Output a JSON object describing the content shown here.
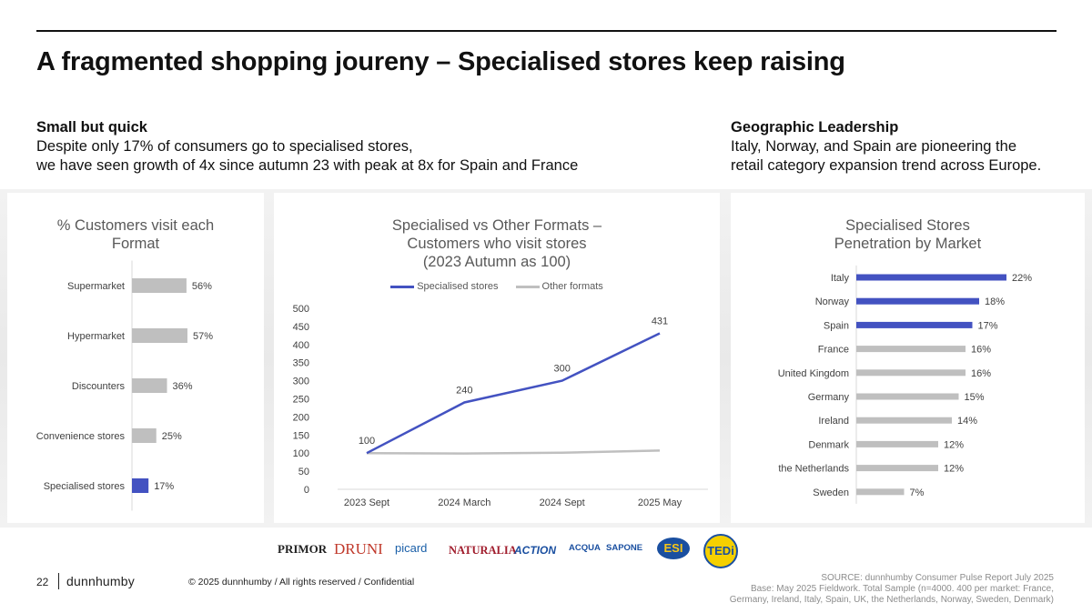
{
  "header": {
    "title": "A fragmented shopping joureny – Specialised stores keep raising"
  },
  "left_blurb": {
    "heading": "Small but quick",
    "line1": "Despite only 17% of consumers go to specialised stores,",
    "line2": "we have seen growth of 4x since autumn 23 with peak at 8x for Spain and France"
  },
  "right_blurb": {
    "heading": "Geographic Leadership",
    "line1": "Italy, Norway, and Spain are pioneering the",
    "line2": "retail category expansion trend across Europe."
  },
  "colors": {
    "accent": "#4352c1",
    "grey_bar": "#bfbfbf",
    "other_line": "#bfbfbf"
  },
  "chart_data": [
    {
      "type": "bar",
      "orientation": "horizontal",
      "title_line1": "% Customers visit each",
      "title_line2": "Format",
      "categories": [
        "Supermarket",
        "Hypermarket",
        "Discounters",
        "Convenience stores",
        "Specialised stores"
      ],
      "values": [
        56,
        57,
        36,
        25,
        17
      ],
      "labels": [
        "56%",
        "57%",
        "36%",
        "25%",
        "17%"
      ],
      "highlight": [
        false,
        false,
        false,
        false,
        true
      ]
    },
    {
      "type": "line",
      "title_line1": "Specialised vs Other Formats –",
      "title_line2": "Customers who visit stores",
      "title_line3": "(2023 Autumn as 100)",
      "categories": [
        "2023 Sept",
        "2024 March",
        "2024 Sept",
        "2025 May"
      ],
      "ylim": [
        0,
        500
      ],
      "yticks": [
        0,
        50,
        100,
        150,
        200,
        250,
        300,
        350,
        400,
        450,
        500
      ],
      "series": [
        {
          "name": "Specialised stores",
          "values": [
            100,
            240,
            300,
            431
          ],
          "labels": [
            "100",
            "240",
            "300",
            "431"
          ]
        },
        {
          "name": "Other formats",
          "values": [
            100,
            99,
            101,
            107
          ]
        }
      ],
      "legend": "top"
    },
    {
      "type": "bar",
      "orientation": "horizontal",
      "title_line1": "Specialised Stores",
      "title_line2": "Penetration by Market",
      "categories": [
        "Italy",
        "Norway",
        "Spain",
        "France",
        "United Kingdom",
        "Germany",
        "Ireland",
        "Denmark",
        "the Netherlands",
        "Sweden"
      ],
      "values": [
        22,
        18,
        17,
        16,
        16,
        15,
        14,
        12,
        12,
        7
      ],
      "labels": [
        "22%",
        "18%",
        "17%",
        "16%",
        "16%",
        "15%",
        "14%",
        "12%",
        "12%",
        "7%"
      ],
      "highlight": [
        true,
        true,
        true,
        false,
        false,
        false,
        false,
        false,
        false,
        false
      ]
    }
  ],
  "retailer_logos": [
    "PRIMOR",
    "DRUNI",
    "picard",
    "NATURALIA",
    "ACTION",
    "ACQUA",
    "SAPONE",
    "ESI",
    "TEDi"
  ],
  "footer": {
    "page_number": "22",
    "brand": "dunnhumby",
    "copyright": "© 2025 dunnhumby / All rights reserved / Confidential",
    "source_line1": "SOURCE: dunnhumby Consumer Pulse Report July 2025",
    "source_line2": "Base: May 2025 Fieldwork. Total Sample (n=4000. 400 per market: France,",
    "source_line3": "Germany, Ireland, Italy, Spain, UK, the Netherlands, Norway, Sweden, Denmark)"
  }
}
